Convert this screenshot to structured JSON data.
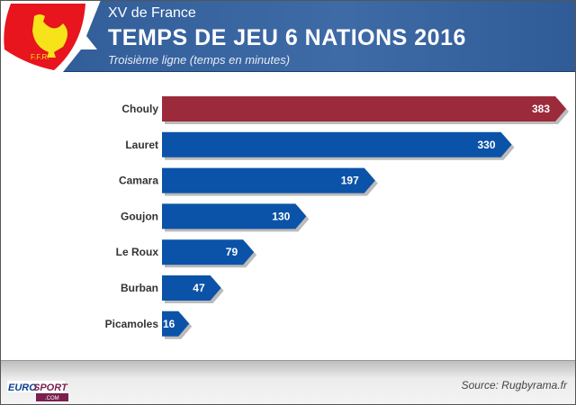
{
  "header": {
    "kicker": "XV de France",
    "title": "TEMPS DE JEU 6 NATIONS 2016",
    "subtitle": "Troisième ligne (temps en minutes)",
    "logo_text": "F.F.R."
  },
  "footer": {
    "source": "Source: Rugbyrama.fr",
    "brand": "EUROSPORT",
    ".com": ".COM"
  },
  "colors": {
    "highlight": "#9b2b3a",
    "bar": "#0b53a8"
  },
  "chart_data": {
    "type": "bar",
    "orientation": "horizontal",
    "title": "TEMPS DE JEU 6 NATIONS 2016",
    "xlabel": "",
    "ylabel": "",
    "xlim": [
      0,
      383
    ],
    "categories": [
      "Chouly",
      "Lauret",
      "Camara",
      "Goujon",
      "Le Roux",
      "Burban",
      "Picamoles"
    ],
    "values": [
      383,
      330,
      197,
      130,
      79,
      47,
      16
    ],
    "highlight": "Chouly"
  }
}
